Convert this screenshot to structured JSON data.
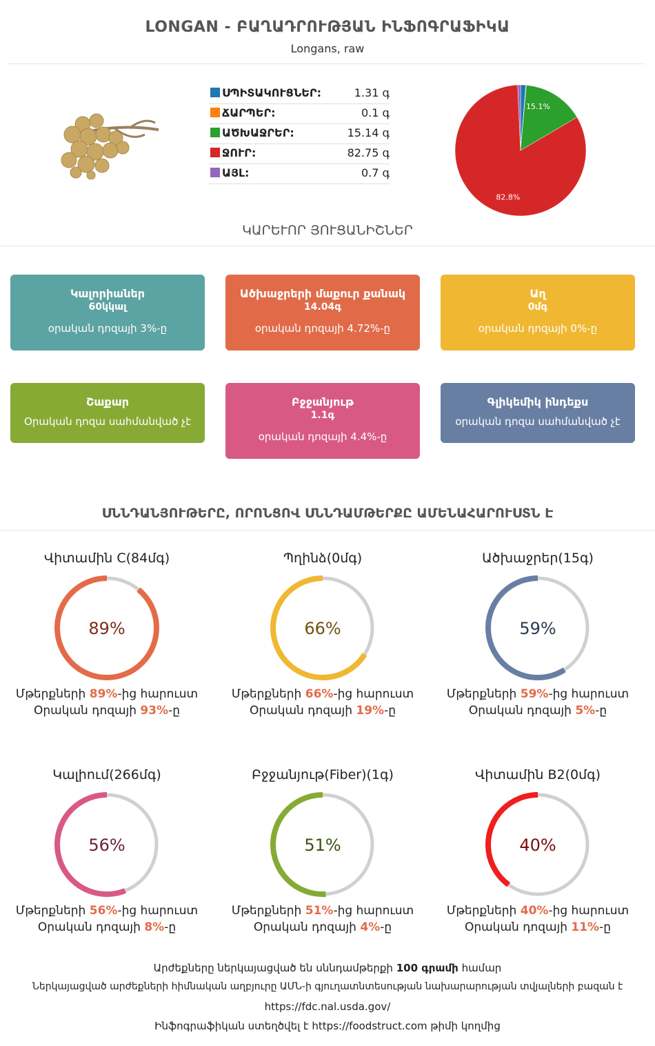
{
  "header": {
    "title": "LONGAN - ԲԱՂԱԴՐՈՒԹՅԱՆ ԻՆՖՈԳՐԱՖԻԿԱ",
    "subtitle": "Longans, raw"
  },
  "composition": {
    "rows": [
      {
        "name": "ՍՊԻՏԱԿՈՒՑՆԵՐ:",
        "value": "1.31 գ",
        "color": "#1f77b4"
      },
      {
        "name": "ՃԱՐՊԵՐ:",
        "value": "0.1 գ",
        "color": "#ff7f0e"
      },
      {
        "name": "ԱԾԽԱՋՐԵՐ:",
        "value": "15.14 գ",
        "color": "#2ca02c"
      },
      {
        "name": "ՋՈՒՐ:",
        "value": "82.75 գ",
        "color": "#d62728"
      },
      {
        "name": "ԱՅԼ:",
        "value": "0.7 գ",
        "color": "#9467bd"
      }
    ]
  },
  "chart_data": {
    "type": "pie",
    "categories": [
      "ՍՊԻՏԱԿՈՒՑՆԵՐ",
      "ՃԱՐՊԵՐ",
      "ԱԾԽԱՋՐԵՐ",
      "ՋՈՒՐ",
      "ԱՅԼ"
    ],
    "values": [
      1.31,
      0.1,
      15.14,
      82.75,
      0.7
    ],
    "colors": [
      "#1f77b4",
      "#ff7f0e",
      "#2ca02c",
      "#d62728",
      "#9467bd"
    ],
    "slice_labels": [
      "",
      "",
      "15.1%",
      "82.8%",
      ""
    ]
  },
  "key_features": {
    "title": "ԿԱՐԵՒՈՐ ՅՈՒՑԱՆԻՇՆԵՐ",
    "cards": [
      {
        "title": "Կալորիաներ",
        "value": "60կկալ",
        "desc": "օրական դոզայի 3%-ը",
        "color": "#5ca3a3"
      },
      {
        "title": "Ածխաջրերի մաքուր քանակ",
        "value": "14.04գ",
        "desc": "օրական դոզայի 4.72%-ը",
        "color": "#e16b49"
      },
      {
        "title": "Աղ",
        "value": "0մգ",
        "desc": "օրական դոզայի 0%-ը",
        "color": "#f0b732"
      },
      {
        "title": "Շաքար",
        "value": "",
        "desc": "Օրական դոզա սահմանված չէ",
        "color": "#86aa34"
      },
      {
        "title": "Բջջանյութ",
        "value": "1.1գ",
        "desc": "օրական դոզայի 4.4%-ը",
        "color": "#d85a84"
      },
      {
        "title": "Գլիկեմիկ ինդեքս",
        "value": "",
        "desc": "օրական դոզա սահմանված չէ",
        "color": "#687fa3"
      }
    ]
  },
  "nutrients": {
    "title": "ՍՆՆԴԱՆՅՈՒԹԵՐԸ, ՈՐՈՆՑՈՎ ՍՆՆԴԱՄԹԵՐՔԸ ԱՄԵՆԱՀԱՐՈՒՍՏՆ Է",
    "prefix": "Մթերքների ",
    "suffix1": "-ից հարուստ",
    "daily_prefix": "Օրական դոզայի ",
    "daily_suffix": "-ը",
    "items": [
      {
        "name": "Վիտամին C(84մգ)",
        "pct": "89%",
        "pct_value": 89,
        "daily": "93%",
        "color": "#e36b4a",
        "text_color": "#7a2e1a"
      },
      {
        "name": "Պղինձ(0մգ)",
        "pct": "66%",
        "pct_value": 66,
        "daily": "19%",
        "color": "#f0b732",
        "text_color": "#6e5210"
      },
      {
        "name": "Ածխաջրեր(15գ)",
        "pct": "59%",
        "pct_value": 59,
        "daily": "5%",
        "color": "#687fa3",
        "text_color": "#2b3a52"
      },
      {
        "name": "Կալիում(266մգ)",
        "pct": "56%",
        "pct_value": 56,
        "daily": "8%",
        "color": "#d85a84",
        "text_color": "#6b1f3c"
      },
      {
        "name": "Բջջանյութ(Fiber)(1գ)",
        "pct": "51%",
        "pct_value": 51,
        "daily": "4%",
        "color": "#86aa34",
        "text_color": "#3d5210"
      },
      {
        "name": "Վիտամին B2(0մգ)",
        "pct": "40%",
        "pct_value": 40,
        "daily": "11%",
        "color": "#f01e1e",
        "text_color": "#7a0d0d"
      }
    ]
  },
  "footer": {
    "line1_a": "Արժեքները ներկայացված են սննդամթերքի ",
    "line1_b": "100 գրամի",
    "line1_c": " համար",
    "line2": "Ներկայացված արժեքների հիմնական աղբյուրը ԱՄՆ-ի գյուղատնտեսության նախարարության տվյալների բազան է",
    "line3": "https://fdc.nal.usda.gov/",
    "line4_a": "Ինֆոգրաֆիկան ստեղծվել է ",
    "line4_b": "https://foodstruct.com",
    "line4_c": " թիմի կողմից"
  }
}
